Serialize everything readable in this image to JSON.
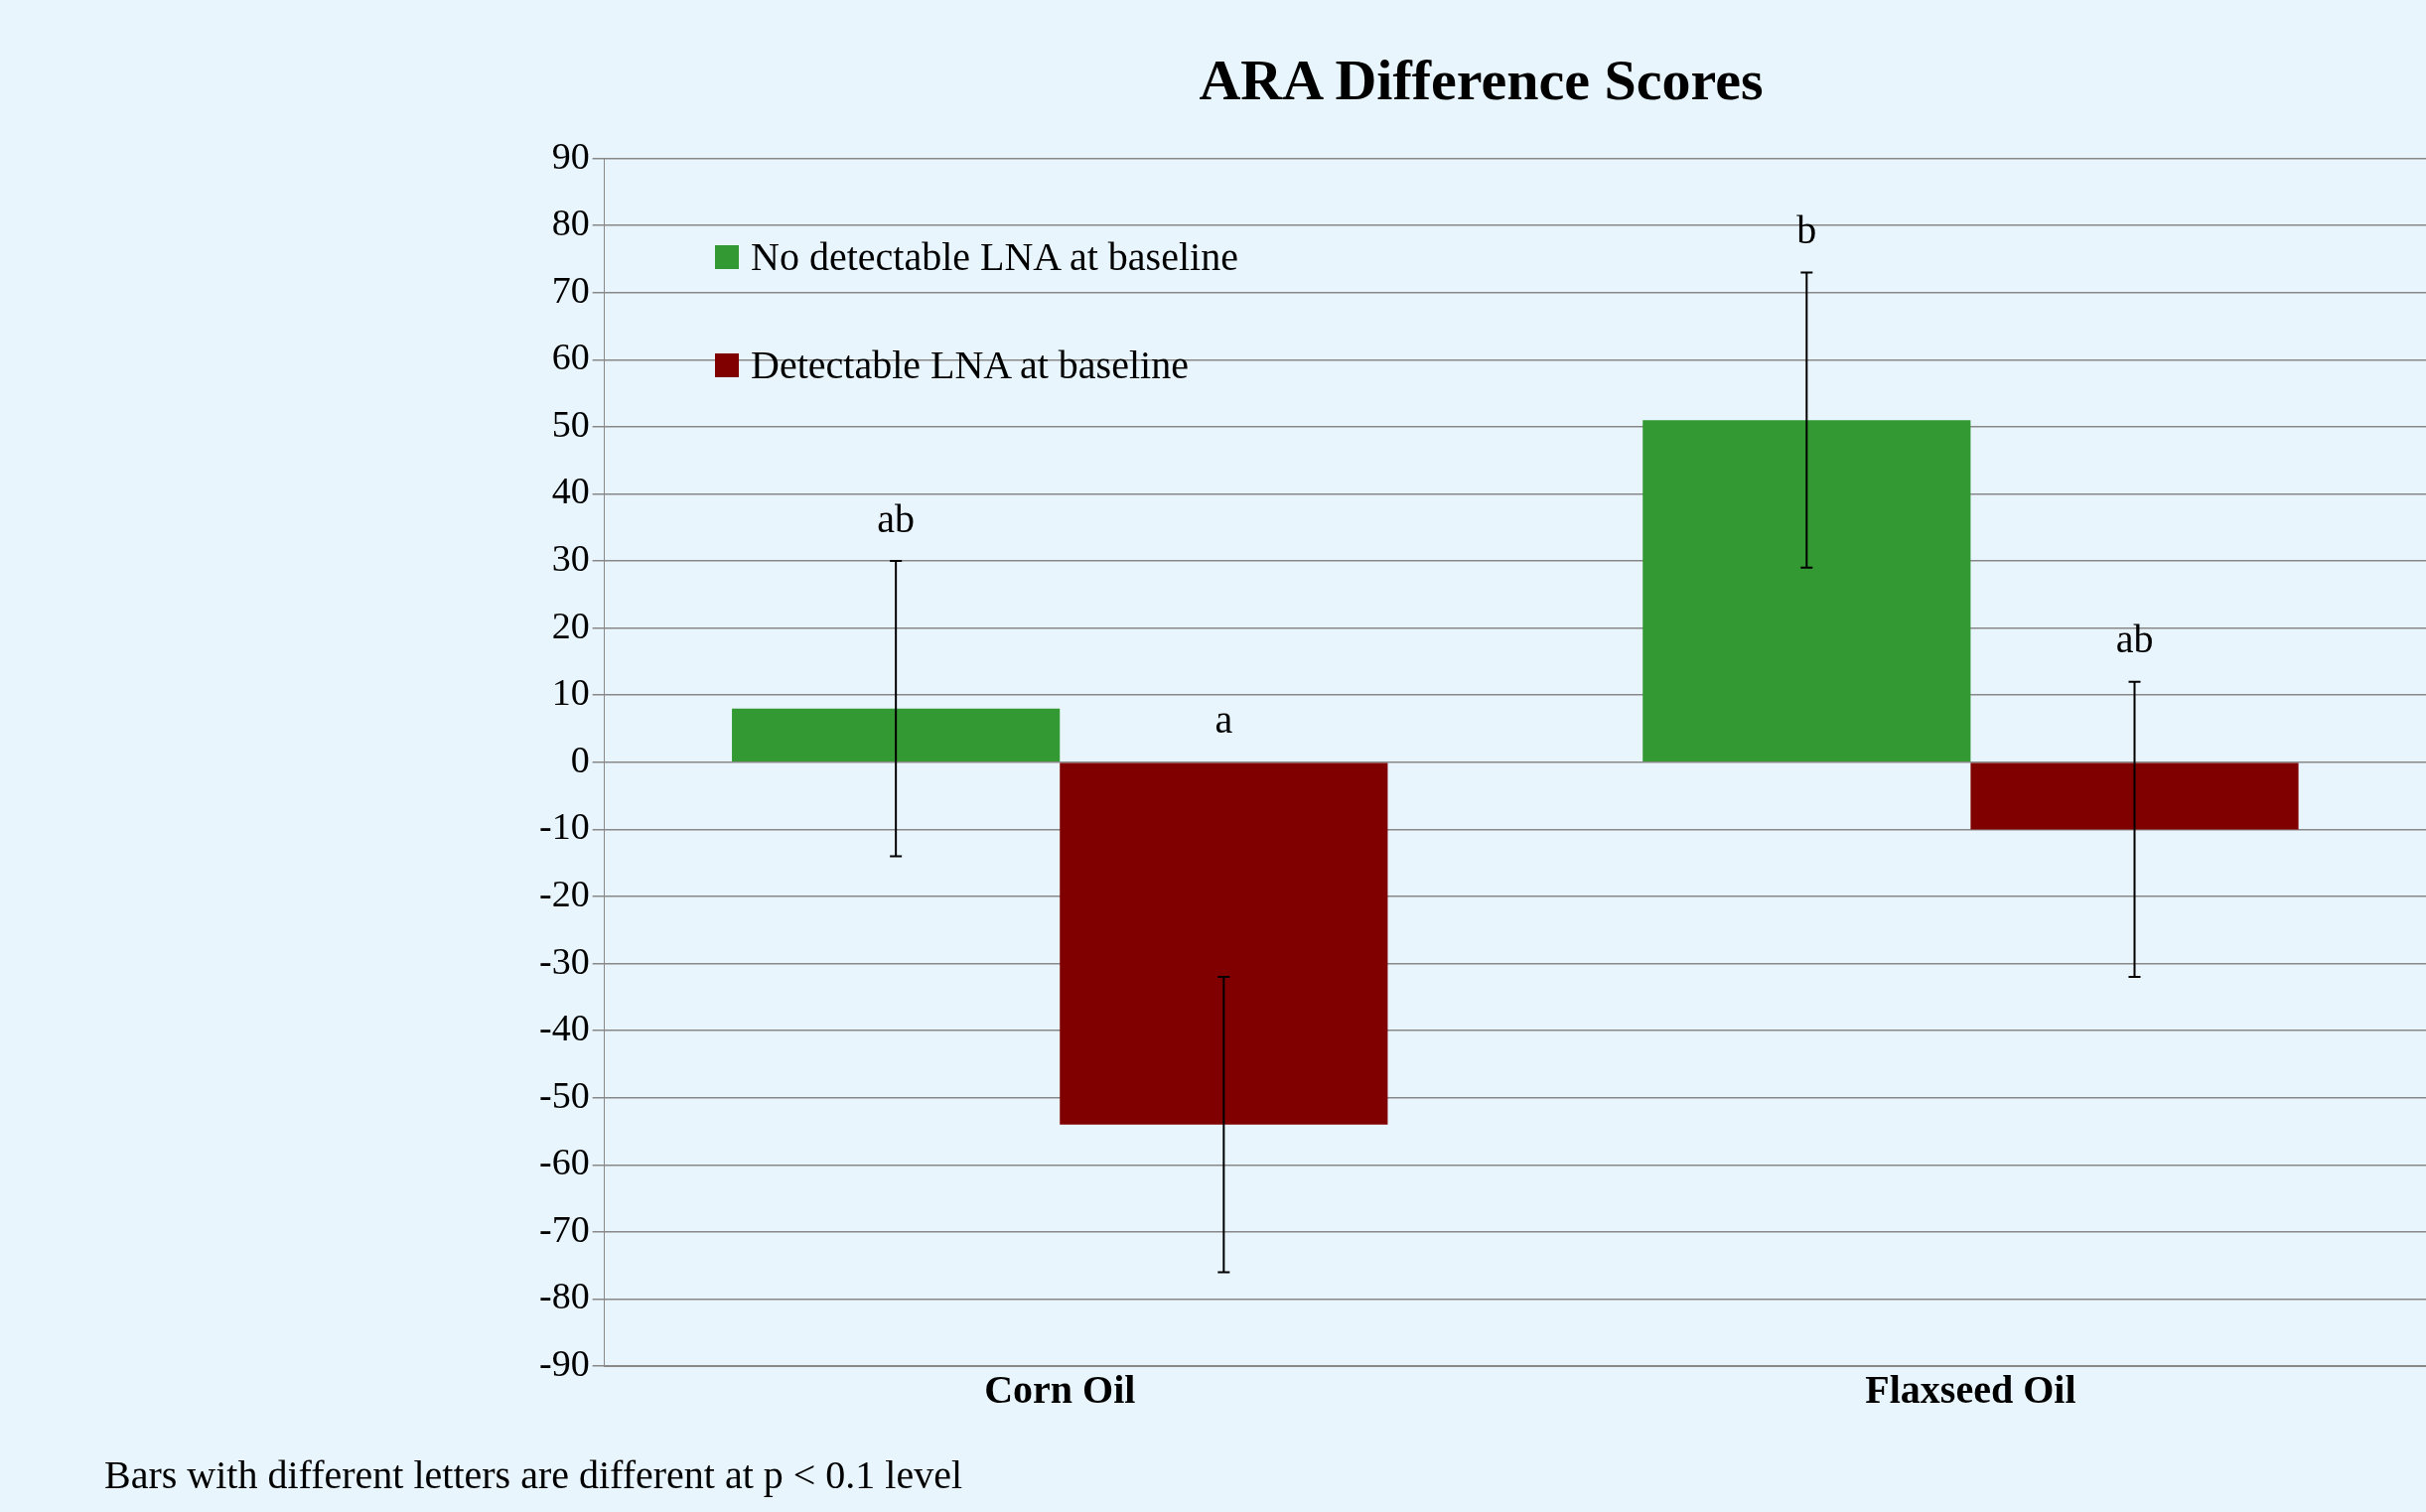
{
  "chart_data": {
    "type": "bar",
    "title": "ARA Difference Scores",
    "categories": [
      "Corn Oil",
      "Flaxseed Oil"
    ],
    "series": [
      {
        "name": "No detectable LNA at baseline",
        "color": "#339933",
        "values": [
          8,
          51
        ],
        "errors": [
          22,
          22
        ]
      },
      {
        "name": "Detectable LNA at baseline",
        "color": "#800000",
        "values": [
          -54,
          -10
        ],
        "errors": [
          22,
          22
        ]
      }
    ],
    "ylim": [
      -90,
      90
    ],
    "yticks": [
      -90,
      -80,
      -70,
      -60,
      -50,
      -40,
      -30,
      -20,
      -10,
      0,
      10,
      20,
      30,
      40,
      50,
      60,
      70,
      80,
      90
    ],
    "grid": "y",
    "legend": "top left",
    "annotations": [
      "ab",
      "a",
      "b",
      "ab",
      "Bars with different letters are different at p < 0.1 level"
    ]
  }
}
